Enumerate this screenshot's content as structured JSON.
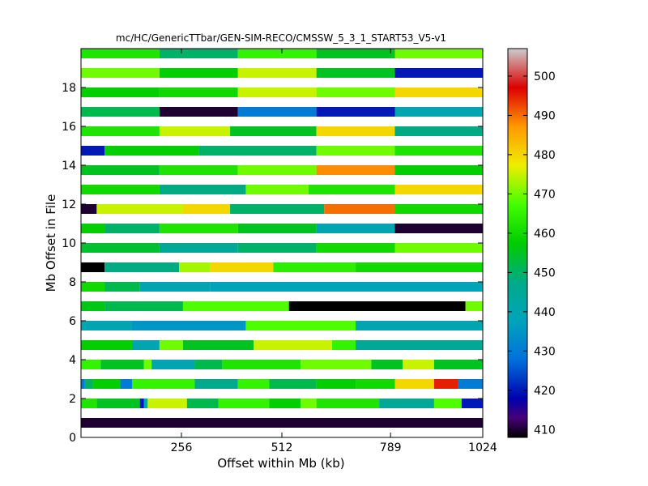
{
  "chart_data": {
    "type": "heatmap",
    "title": "mc/HC/GenericTTbar/GEN-SIM-RECO/CMSSW_5_3_1_START53_V5-v1",
    "xlabel": "Offset within Mb (kb)",
    "ylabel": "Mb Offset in File",
    "xlim": [
      0,
      1024
    ],
    "ylim": [
      0,
      20
    ],
    "x_ticks": [
      "256",
      "512",
      "789",
      "1024"
    ],
    "y_ticks": [
      "0",
      "2",
      "4",
      "6",
      "8",
      "10",
      "12",
      "14",
      "16",
      "18"
    ],
    "colorbar": {
      "range": [
        408,
        507
      ],
      "ticks": [
        "410",
        "420",
        "430",
        "440",
        "450",
        "460",
        "470",
        "480",
        "490",
        "500"
      ],
      "colormap": "nipy_spectral"
    },
    "grid": false,
    "rows": [
      {
        "mb": 0,
        "cells": [
          [
            0,
            1024,
            410
          ]
        ]
      },
      {
        "mb": 1,
        "cells": [
          [
            0,
            40,
            462
          ],
          [
            40,
            150,
            455
          ],
          [
            150,
            160,
            420
          ],
          [
            160,
            170,
            440
          ],
          [
            170,
            270,
            475
          ],
          [
            270,
            350,
            452
          ],
          [
            350,
            480,
            465
          ],
          [
            480,
            560,
            458
          ],
          [
            560,
            600,
            470
          ],
          [
            600,
            760,
            462
          ],
          [
            760,
            900,
            445
          ],
          [
            900,
            970,
            468
          ],
          [
            970,
            1024,
            420
          ]
        ]
      },
      {
        "mb": 2,
        "cells": [
          [
            0,
            10,
            430
          ],
          [
            10,
            30,
            450
          ],
          [
            30,
            100,
            458
          ],
          [
            100,
            130,
            430
          ],
          [
            130,
            290,
            465
          ],
          [
            290,
            400,
            447
          ],
          [
            400,
            480,
            465
          ],
          [
            480,
            600,
            452
          ],
          [
            600,
            700,
            458
          ],
          [
            700,
            800,
            460
          ],
          [
            800,
            900,
            480
          ],
          [
            900,
            960,
            495
          ],
          [
            960,
            1024,
            430
          ]
        ]
      },
      {
        "mb": 3,
        "cells": [
          [
            0,
            50,
            465
          ],
          [
            50,
            160,
            455
          ],
          [
            160,
            180,
            470
          ],
          [
            180,
            290,
            440
          ],
          [
            290,
            360,
            452
          ],
          [
            360,
            560,
            462
          ],
          [
            560,
            740,
            470
          ],
          [
            740,
            820,
            455
          ],
          [
            820,
            900,
            475
          ],
          [
            900,
            1024,
            455
          ]
        ]
      },
      {
        "mb": 4,
        "cells": [
          [
            0,
            130,
            458
          ],
          [
            130,
            200,
            440
          ],
          [
            200,
            260,
            470
          ],
          [
            260,
            440,
            455
          ],
          [
            440,
            640,
            475
          ],
          [
            640,
            700,
            465
          ],
          [
            700,
            1024,
            445
          ]
        ]
      },
      {
        "mb": 5,
        "cells": [
          [
            0,
            130,
            440
          ],
          [
            130,
            420,
            435
          ],
          [
            420,
            700,
            468
          ],
          [
            700,
            1024,
            440
          ]
        ]
      },
      {
        "mb": 6,
        "cells": [
          [
            0,
            60,
            456
          ],
          [
            60,
            260,
            452
          ],
          [
            260,
            530,
            468
          ],
          [
            530,
            980,
            408
          ],
          [
            980,
            1024,
            470
          ]
        ]
      },
      {
        "mb": 7,
        "cells": [
          [
            0,
            60,
            460
          ],
          [
            60,
            150,
            452
          ],
          [
            150,
            330,
            440
          ],
          [
            330,
            1024,
            438
          ]
        ]
      },
      {
        "mb": 8,
        "cells": [
          [
            0,
            60,
            408
          ],
          [
            60,
            250,
            448
          ],
          [
            250,
            330,
            473
          ],
          [
            330,
            490,
            480
          ],
          [
            490,
            700,
            464
          ],
          [
            700,
            1024,
            460
          ]
        ]
      },
      {
        "mb": 9,
        "cells": [
          [
            0,
            200,
            454
          ],
          [
            200,
            400,
            445
          ],
          [
            400,
            600,
            450
          ],
          [
            600,
            800,
            460
          ],
          [
            800,
            1024,
            470
          ]
        ]
      },
      {
        "mb": 10,
        "cells": [
          [
            0,
            60,
            458
          ],
          [
            60,
            200,
            450
          ],
          [
            200,
            400,
            462
          ],
          [
            400,
            600,
            455
          ],
          [
            600,
            800,
            440
          ],
          [
            800,
            1024,
            410
          ]
        ]
      },
      {
        "mb": 11,
        "cells": [
          [
            0,
            40,
            410
          ],
          [
            40,
            260,
            475
          ],
          [
            260,
            380,
            480
          ],
          [
            380,
            620,
            450
          ],
          [
            620,
            800,
            490
          ],
          [
            800,
            1024,
            460
          ]
        ]
      },
      {
        "mb": 12,
        "cells": [
          [
            0,
            200,
            460
          ],
          [
            200,
            420,
            448
          ],
          [
            420,
            580,
            470
          ],
          [
            580,
            800,
            462
          ],
          [
            800,
            1024,
            480
          ]
        ]
      },
      {
        "mb": 13,
        "cells": [
          [
            0,
            200,
            455
          ],
          [
            200,
            400,
            462
          ],
          [
            400,
            600,
            470
          ],
          [
            600,
            800,
            488
          ],
          [
            800,
            1024,
            458
          ]
        ]
      },
      {
        "mb": 14,
        "cells": [
          [
            0,
            60,
            420
          ],
          [
            60,
            300,
            458
          ],
          [
            300,
            600,
            450
          ],
          [
            600,
            800,
            470
          ],
          [
            800,
            1024,
            462
          ]
        ]
      },
      {
        "mb": 15,
        "cells": [
          [
            0,
            200,
            462
          ],
          [
            200,
            380,
            475
          ],
          [
            380,
            600,
            455
          ],
          [
            600,
            800,
            480
          ],
          [
            800,
            1024,
            448
          ]
        ]
      },
      {
        "mb": 16,
        "cells": [
          [
            0,
            200,
            452
          ],
          [
            200,
            400,
            410
          ],
          [
            400,
            600,
            430
          ],
          [
            600,
            800,
            420
          ],
          [
            800,
            1024,
            440
          ]
        ]
      },
      {
        "mb": 17,
        "cells": [
          [
            0,
            200,
            458
          ],
          [
            200,
            400,
            460
          ],
          [
            400,
            600,
            475
          ],
          [
            600,
            800,
            470
          ],
          [
            800,
            1024,
            480
          ]
        ]
      },
      {
        "mb": 18,
        "cells": [
          [
            0,
            200,
            470
          ],
          [
            200,
            400,
            458
          ],
          [
            400,
            600,
            475
          ],
          [
            600,
            800,
            455
          ],
          [
            800,
            1024,
            420
          ]
        ]
      },
      {
        "mb": 19,
        "cells": [
          [
            0,
            200,
            462
          ],
          [
            200,
            400,
            450
          ],
          [
            400,
            600,
            465
          ],
          [
            600,
            800,
            455
          ],
          [
            800,
            1024,
            470
          ]
        ]
      }
    ]
  }
}
